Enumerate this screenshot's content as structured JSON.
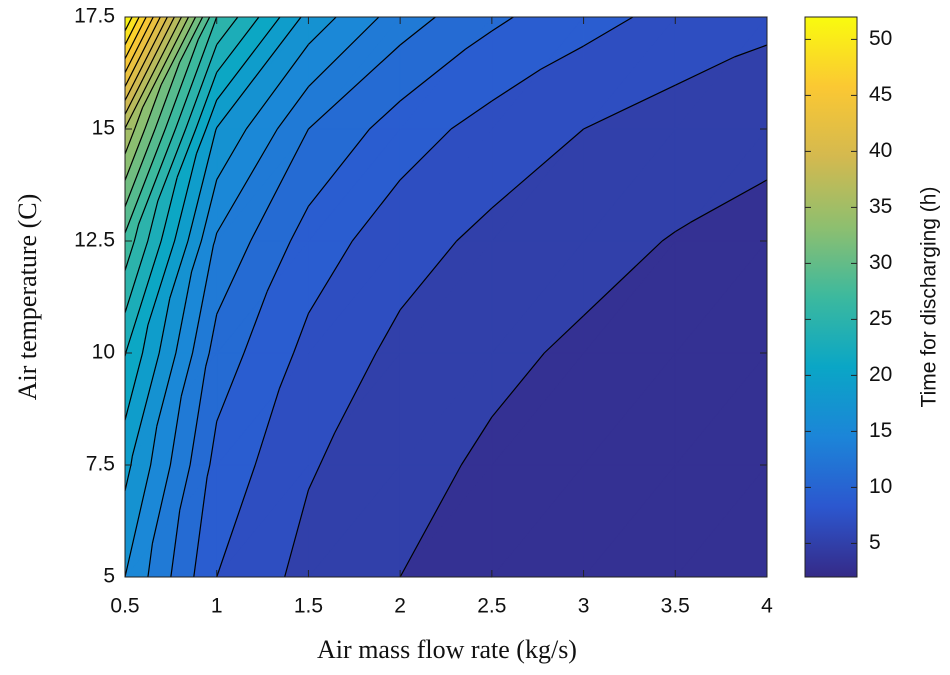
{
  "chart_data": {
    "type": "contour",
    "xlabel": "Air mass flow rate (kg/s)",
    "ylabel": "Air temperature (C)",
    "x": [
      0.5,
      1,
      1.5,
      2,
      2.5,
      3,
      3.5,
      4
    ],
    "y": [
      5,
      7.5,
      10,
      12.5,
      15,
      17.5
    ],
    "z": [
      [
        16.0,
        8.0,
        5.3,
        4.0,
        3.2,
        2.7,
        2.3,
        2.0
      ],
      [
        18.6,
        9.3,
        6.2,
        4.6,
        3.7,
        3.1,
        2.7,
        2.3
      ],
      [
        22.1,
        11.1,
        7.4,
        5.5,
        4.4,
        3.7,
        3.2,
        2.8
      ],
      [
        27.4,
        13.7,
        9.1,
        6.8,
        5.5,
        4.6,
        3.9,
        3.4
      ],
      [
        35.9,
        17.9,
        12.0,
        9.0,
        7.2,
        6.0,
        5.1,
        4.5
      ],
      [
        52.0,
        26.0,
        17.3,
        13.0,
        10.4,
        8.7,
        7.4,
        6.5
      ]
    ],
    "levels": [
      2,
      4,
      6,
      8,
      10,
      12,
      14,
      16,
      18,
      20,
      22,
      24,
      26,
      28,
      30,
      32,
      34,
      36,
      38,
      40,
      42,
      44,
      46,
      48,
      50,
      52
    ],
    "xlim": [
      0.5,
      4
    ],
    "ylim": [
      5,
      17.5
    ],
    "xticks": [
      0.5,
      1,
      1.5,
      2,
      2.5,
      3,
      3.5,
      4
    ],
    "yticks": [
      5,
      7.5,
      10,
      12.5,
      15,
      17.5
    ],
    "line_color": "#000000",
    "colormap": [
      "#352a87",
      "#2c57cf",
      "#1c85d8",
      "#0aa6c6",
      "#3cb99e",
      "#8ebf6f",
      "#d4b94f",
      "#fbc833",
      "#f9fb0e"
    ],
    "colorbar": {
      "label": "Time for discharging (h)",
      "lim": [
        2,
        52
      ],
      "ticks": [
        5,
        10,
        15,
        20,
        25,
        30,
        35,
        40,
        45,
        50
      ]
    }
  }
}
